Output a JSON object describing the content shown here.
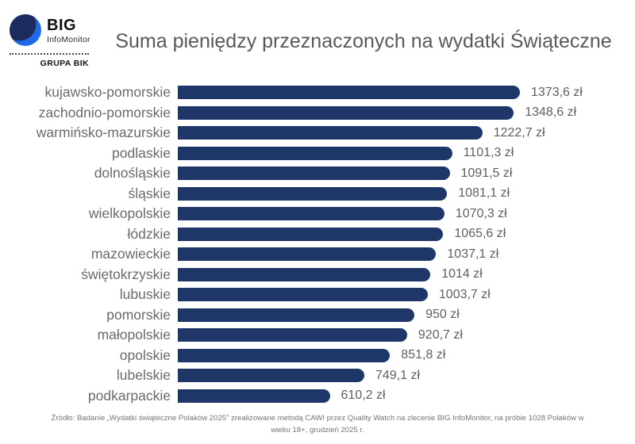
{
  "logo": {
    "name": "BIG InfoMonitor logo",
    "line1": "BIG",
    "line2": "InfoMonitor",
    "group": "GRUPA BIK"
  },
  "title": "Suma pieniędzy przeznaczonych na wydatki Świąteczne",
  "footer": {
    "line1": "Źródło: Badanie „Wydatki świąteczne Polaków 2025” zrealizowane metodą CAWI przez Quality Watch na zlecenie BIG InfoMonitor, na próbie 1028 Polaków w",
    "line2": "wieku 18+, grudzień 2025 r."
  },
  "colors": {
    "bar": "#1e3768",
    "title_text": "#595959",
    "label_text": "#6a6a6a",
    "value_text": "#5f5f5f",
    "footer_text": "#757575",
    "logo_dark": "#1c2b5e",
    "logo_bright": "#1f6ae8"
  },
  "chart_data": {
    "type": "bar",
    "orientation": "horizontal",
    "title": "Suma pieniędzy przeznaczonych na wydatki Świąteczne",
    "unit": "zł",
    "xlabel": "",
    "ylabel": "",
    "xlim": [
      0,
      1400
    ],
    "grid": false,
    "legend": false,
    "bar_color": "#1e3768",
    "categories": [
      "kujawsko-pomorskie",
      "zachodnio-pomorskie",
      "warmińsko-mazurskie",
      "podlaskie",
      "dolnośląskie",
      "śląskie",
      "wielkopolskie",
      "łódzkie",
      "mazowieckie",
      "świętokrzyskie",
      "lubuskie",
      "pomorskie",
      "małopolskie",
      "opolskie",
      "lubelskie",
      "podkarpackie"
    ],
    "values": [
      1373.6,
      1348.6,
      1222.7,
      1101.3,
      1091.5,
      1081.1,
      1070.3,
      1065.6,
      1037.1,
      1014,
      1003.7,
      950,
      920.7,
      851.8,
      749.1,
      610.2
    ],
    "value_labels": [
      "1373,6 zł",
      "1348,6 zł",
      "1222,7 zł",
      "1101,3 zł",
      "1091,5 zł",
      "1081,1 zł",
      "1070,3 zł",
      "1065,6 zł",
      "1037,1 zł",
      "1014 zł",
      "1003,7 zł",
      "950 zł",
      "920,7 zł",
      "851,8 zł",
      "749,1 zł",
      "610,2 zł"
    ]
  }
}
